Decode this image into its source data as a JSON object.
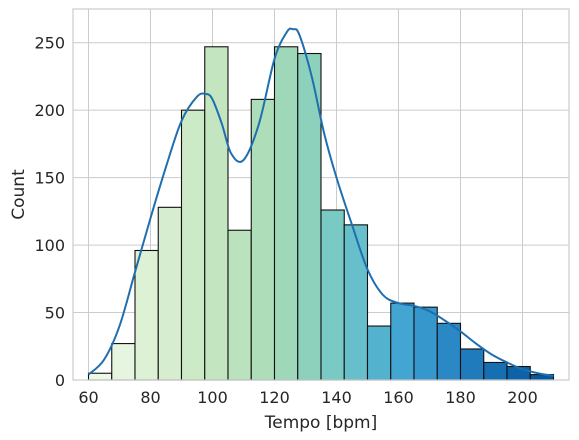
{
  "chart_data": {
    "type": "bar",
    "subtype": "histogram",
    "xlabel": "Tempo [bpm]",
    "ylabel": "Count",
    "xlim": [
      55,
      215
    ],
    "ylim": [
      0,
      275
    ],
    "xticks": [
      60,
      80,
      100,
      120,
      140,
      160,
      180,
      200
    ],
    "yticks": [
      0,
      50,
      100,
      150,
      200,
      250
    ],
    "grid": true,
    "colormap": "GnBu",
    "bins": [
      {
        "x0": 60,
        "x1": 67.5,
        "count": 5,
        "color": "#eef8e9"
      },
      {
        "x0": 67.5,
        "x1": 75,
        "count": 27,
        "color": "#e6f5df"
      },
      {
        "x0": 75,
        "x1": 82.5,
        "count": 96,
        "color": "#ddf1d5"
      },
      {
        "x0": 82.5,
        "x1": 90,
        "count": 128,
        "color": "#d6eecf"
      },
      {
        "x0": 90,
        "x1": 97.5,
        "count": 200,
        "color": "#cdeac7"
      },
      {
        "x0": 97.5,
        "x1": 105,
        "count": 247,
        "color": "#c3e6c1"
      },
      {
        "x0": 105,
        "x1": 112.5,
        "count": 111,
        "color": "#b9e2bd"
      },
      {
        "x0": 112.5,
        "x1": 120,
        "count": 208,
        "color": "#aedeb9"
      },
      {
        "x0": 120,
        "x1": 127.5,
        "count": 247,
        "color": "#9fd8b8"
      },
      {
        "x0": 127.5,
        "x1": 135,
        "count": 242,
        "color": "#8dd1bd"
      },
      {
        "x0": 135,
        "x1": 142.5,
        "count": 126,
        "color": "#79c9c4"
      },
      {
        "x0": 142.5,
        "x1": 150,
        "count": 115,
        "color": "#66bfca"
      },
      {
        "x0": 150,
        "x1": 157.5,
        "count": 40,
        "color": "#53b3cf"
      },
      {
        "x0": 157.5,
        "x1": 165,
        "count": 57,
        "color": "#43a6d2"
      },
      {
        "x0": 165,
        "x1": 172.5,
        "count": 54,
        "color": "#3597cc"
      },
      {
        "x0": 172.5,
        "x1": 180,
        "count": 42,
        "color": "#2a89c4"
      },
      {
        "x0": 180,
        "x1": 187.5,
        "count": 23,
        "color": "#1f7bbb"
      },
      {
        "x0": 187.5,
        "x1": 195,
        "count": 13,
        "color": "#166fb1"
      },
      {
        "x0": 195,
        "x1": 202.5,
        "count": 10,
        "color": "#0e62a7"
      },
      {
        "x0": 202.5,
        "x1": 210,
        "count": 4,
        "color": "#08579c"
      }
    ],
    "kde": {
      "color": "#1f6fb0",
      "x": [
        60,
        65,
        70,
        75,
        80,
        85,
        90,
        95,
        98,
        100,
        103,
        106,
        110,
        115,
        120,
        124,
        126,
        128,
        132,
        136,
        140,
        145,
        150,
        155,
        160,
        165,
        170,
        175,
        180,
        185,
        190,
        195,
        200,
        205,
        210
      ],
      "y": [
        4,
        15,
        40,
        80,
        120,
        158,
        192,
        210,
        212,
        208,
        190,
        168,
        163,
        190,
        238,
        258,
        260,
        256,
        225,
        183,
        150,
        115,
        82,
        63,
        57,
        55,
        51,
        44,
        36,
        27,
        19,
        13,
        8,
        5,
        3
      ]
    }
  }
}
